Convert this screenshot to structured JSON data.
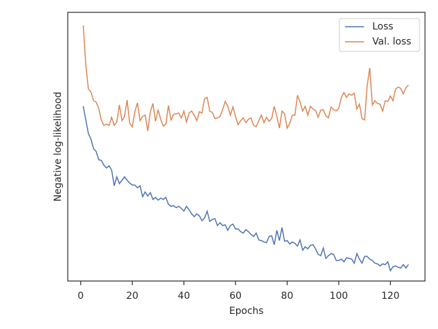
{
  "chart_data": {
    "type": "line",
    "xlabel": "Epochs",
    "ylabel": "Negative log-likelihood",
    "x": [
      1,
      2,
      3,
      4,
      5,
      6,
      7,
      8,
      9,
      10,
      11,
      12,
      13,
      14,
      15,
      16,
      17,
      18,
      19,
      20,
      21,
      22,
      23,
      24,
      25,
      26,
      27,
      28,
      29,
      30,
      31,
      32,
      33,
      34,
      35,
      36,
      37,
      38,
      39,
      40,
      41,
      42,
      43,
      44,
      45,
      46,
      47,
      48,
      49,
      50,
      51,
      52,
      53,
      54,
      55,
      56,
      57,
      58,
      59,
      60,
      61,
      62,
      63,
      64,
      65,
      66,
      67,
      68,
      69,
      70,
      71,
      72,
      73,
      74,
      75,
      76,
      77,
      78,
      79,
      80,
      81,
      82,
      83,
      84,
      85,
      86,
      87,
      88,
      89,
      90,
      91,
      92,
      93,
      94,
      95,
      96,
      97,
      98,
      99,
      100,
      101,
      102,
      103,
      104,
      105,
      106,
      107,
      108,
      109,
      110,
      111,
      112,
      113,
      114,
      115,
      116,
      117,
      118,
      119,
      120,
      121,
      122,
      123,
      124,
      125,
      126,
      127
    ],
    "series": [
      {
        "name": "Loss",
        "color": "#4c72b0",
        "values": [
          255,
          235,
          215,
          207,
          193,
          189,
          177,
          176,
          169,
          165,
          168,
          162,
          139,
          152,
          142,
          147,
          152,
          147,
          143,
          140,
          140,
          136,
          139,
          123,
          130,
          124,
          129,
          119,
          122,
          118,
          121,
          119,
          122,
          112,
          109,
          110,
          107,
          109,
          106,
          102,
          109,
          104,
          98,
          94,
          98,
          95,
          88,
          92,
          102,
          87,
          90,
          91,
          81,
          85,
          81,
          82,
          74,
          81,
          83,
          76,
          76,
          72,
          70,
          75,
          72,
          68,
          65,
          70,
          60,
          59,
          57,
          56,
          65,
          66,
          53,
          74,
          59,
          78,
          58,
          59,
          54,
          57,
          55,
          51,
          60,
          45,
          50,
          47,
          52,
          53,
          47,
          39,
          37,
          48,
          33,
          37,
          40,
          39,
          30,
          30,
          32,
          28,
          34,
          33,
          32,
          26,
          40,
          32,
          26,
          36,
          36,
          32,
          30,
          26,
          25,
          22,
          25,
          24,
          28,
          15,
          21,
          22,
          20,
          19,
          24,
          19,
          24
        ]
      },
      {
        "name": "Val. loss",
        "color": "#dd8452",
        "values": [
          373,
          315,
          280,
          276,
          263,
          261,
          252,
          235,
          227,
          229,
          227,
          239,
          227,
          232,
          257,
          234,
          240,
          264,
          230,
          225,
          247,
          260,
          234,
          240,
          242,
          219,
          247,
          259,
          233,
          250,
          236,
          226,
          229,
          256,
          235,
          243,
          244,
          245,
          238,
          248,
          232,
          245,
          248,
          242,
          234,
          247,
          245,
          266,
          268,
          248,
          246,
          237,
          238,
          240,
          250,
          262,
          255,
          242,
          254,
          240,
          228,
          234,
          238,
          231,
          236,
          238,
          227,
          225,
          234,
          242,
          231,
          239,
          233,
          237,
          255,
          240,
          223,
          248,
          244,
          223,
          230,
          242,
          242,
          271,
          261,
          248,
          255,
          242,
          255,
          251,
          249,
          239,
          249,
          250,
          241,
          238,
          254,
          250,
          248,
          252,
          268,
          275,
          268,
          273,
          271,
          274,
          251,
          258,
          237,
          235,
          285,
          311,
          257,
          263,
          259,
          258,
          248,
          263,
          262,
          270,
          263,
          280,
          283,
          281,
          273,
          282,
          286
        ]
      }
    ],
    "xlim": [
      -5.0,
      133.4
    ],
    "xticks": [
      0,
      20,
      40,
      60,
      80,
      100,
      120
    ],
    "ylim": [
      0,
      392
    ],
    "legend": "upper right"
  }
}
